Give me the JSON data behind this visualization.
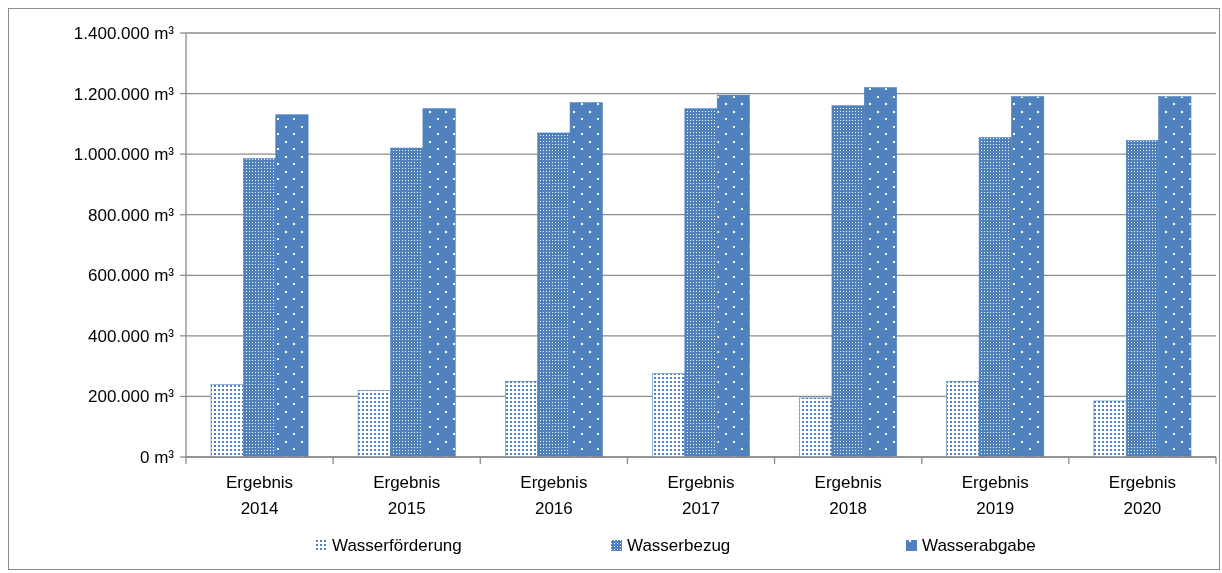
{
  "chart_data": {
    "type": "bar",
    "categories": [
      "Ergebnis 2014",
      "Ergebnis 2015",
      "Ergebnis 2016",
      "Ergebnis 2017",
      "Ergebnis 2018",
      "Ergebnis 2019",
      "Ergebnis 2020"
    ],
    "series": [
      {
        "name": "Wasserförderung",
        "color": "#4f81bd",
        "values": [
          240000,
          220000,
          250000,
          275000,
          195000,
          250000,
          185000
        ]
      },
      {
        "name": "Wasserbezug",
        "color": "#4f81bd",
        "values": [
          985000,
          1020000,
          1070000,
          1150000,
          1160000,
          1055000,
          1045000
        ]
      },
      {
        "name": "Wasserabgabe",
        "color": "#4f81bd",
        "values": [
          1130000,
          1150000,
          1170000,
          1195000,
          1220000,
          1190000,
          1190000
        ]
      }
    ],
    "ylim": [
      0,
      1400000
    ],
    "yticks": [
      {
        "value": 0,
        "label": "0 m³"
      },
      {
        "value": 200000,
        "label": "200.000 m³"
      },
      {
        "value": 400000,
        "label": "400.000 m³"
      },
      {
        "value": 600000,
        "label": "600.000 m³"
      },
      {
        "value": 800000,
        "label": "800.000 m³"
      },
      {
        "value": 1000000,
        "label": "1.000.000 m³"
      },
      {
        "value": 1200000,
        "label": "1.200.000 m³"
      },
      {
        "value": 1400000,
        "label": "1.400.000 m³"
      }
    ],
    "grid": "y",
    "legend": "bottom"
  }
}
